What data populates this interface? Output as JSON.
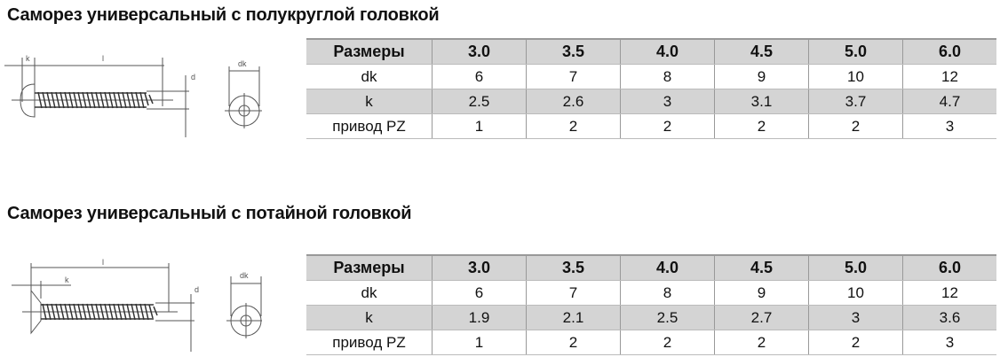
{
  "sections": [
    {
      "title": "Саморез универсальный с полукруглой головкой",
      "head_type": "pan",
      "diagram_labels": {
        "k": "k",
        "l": "l",
        "d": "d",
        "dk": "dk"
      },
      "table": {
        "header": [
          "Размеры",
          "3.0",
          "3.5",
          "4.0",
          "4.5",
          "5.0",
          "6.0"
        ],
        "rows": [
          [
            "dk",
            "6",
            "7",
            "8",
            "9",
            "10",
            "12"
          ],
          [
            "k",
            "2.5",
            "2.6",
            "3",
            "3.1",
            "3.7",
            "4.7"
          ],
          [
            "привод PZ",
            "1",
            "2",
            "2",
            "2",
            "2",
            "3"
          ]
        ]
      }
    },
    {
      "title": "Саморез универсальный с потайной головкой",
      "head_type": "countersunk",
      "diagram_labels": {
        "k": "k",
        "l": "l",
        "d": "d",
        "dk": "dk"
      },
      "table": {
        "header": [
          "Размеры",
          "3.0",
          "3.5",
          "4.0",
          "4.5",
          "5.0",
          "6.0"
        ],
        "rows": [
          [
            "dk",
            "6",
            "7",
            "8",
            "9",
            "10",
            "12"
          ],
          [
            "k",
            "1.9",
            "2.1",
            "2.5",
            "2.7",
            "3",
            "3.6"
          ],
          [
            "привод PZ",
            "1",
            "2",
            "2",
            "2",
            "2",
            "3"
          ]
        ]
      }
    }
  ]
}
